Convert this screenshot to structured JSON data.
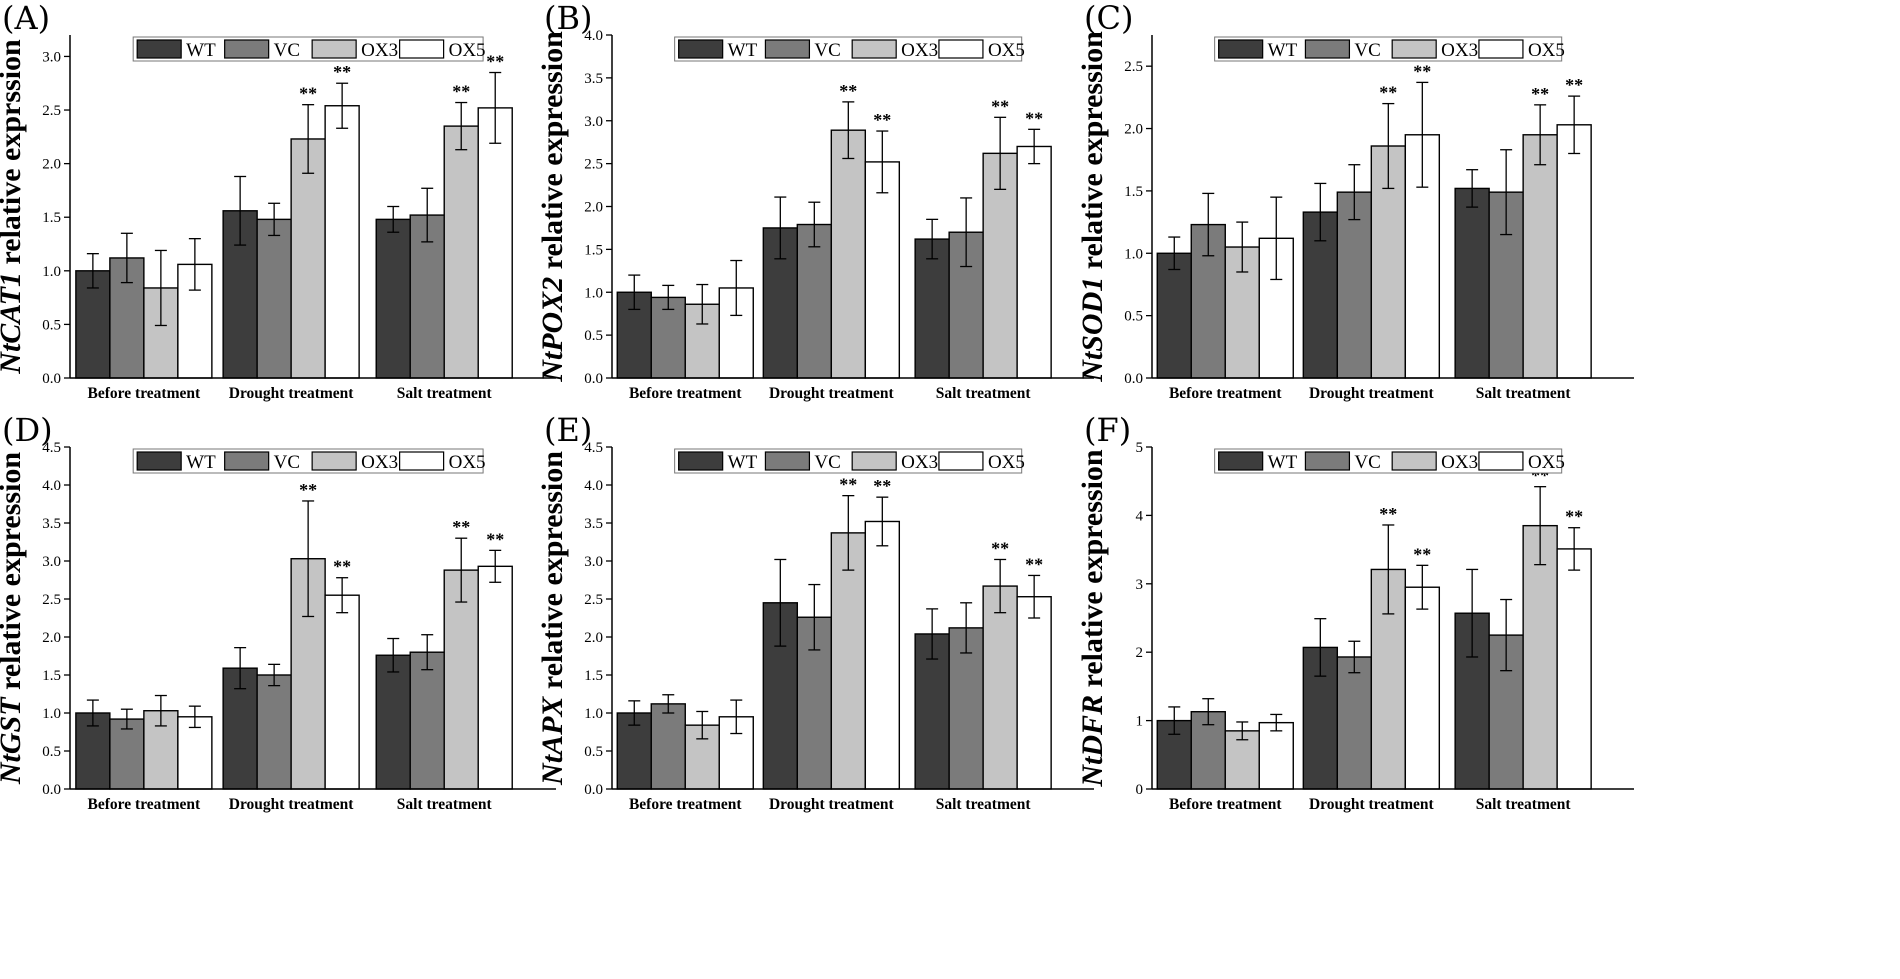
{
  "figure": {
    "colors": {
      "WT": "#3d3d3d",
      "VC": "#7b7b7b",
      "OX3": "#c4c4c4",
      "OX5": "#ffffff"
    },
    "legend": [
      "WT",
      "VC",
      "OX3",
      "OX5"
    ]
  },
  "chart_data": [
    {
      "type": "bar",
      "panel": "(A)",
      "gene": "NtCAT1",
      "ylabel_suffix": " relative exprssion",
      "categories": [
        "Before treatment",
        "Drought treatment",
        "Salt treatment"
      ],
      "ylim": [
        0,
        3.2
      ],
      "yticks": [
        "0.0",
        "0.5",
        "1.0",
        "1.5",
        "2.0",
        "2.5",
        "3.0"
      ],
      "ytick_values": [
        0,
        0.5,
        1,
        1.5,
        2,
        2.5,
        3
      ],
      "series": [
        {
          "name": "WT",
          "values": [
            1.0,
            1.56,
            1.48
          ],
          "errors": [
            0.16,
            0.32,
            0.12
          ],
          "sig": [
            "",
            "",
            ""
          ]
        },
        {
          "name": "VC",
          "values": [
            1.12,
            1.48,
            1.52
          ],
          "errors": [
            0.23,
            0.15,
            0.25
          ],
          "sig": [
            "",
            "",
            ""
          ]
        },
        {
          "name": "OX3",
          "values": [
            0.84,
            2.23,
            2.35
          ],
          "errors": [
            0.35,
            0.32,
            0.22
          ],
          "sig": [
            "",
            "**",
            "**"
          ]
        },
        {
          "name": "OX5",
          "values": [
            1.06,
            2.54,
            2.52
          ],
          "errors": [
            0.24,
            0.21,
            0.33
          ],
          "sig": [
            "",
            "**",
            "**"
          ]
        }
      ]
    },
    {
      "type": "bar",
      "panel": "(B)",
      "gene": "NtPOX2",
      "ylabel_suffix": " relative expression",
      "categories": [
        "Before treatment",
        "Drought treatment",
        "Salt treatment"
      ],
      "ylim": [
        0,
        4.0
      ],
      "yticks": [
        "0.0",
        "0.5",
        "1.0",
        "1.5",
        "2.0",
        "2.5",
        "3.0",
        "3.5",
        "4.0"
      ],
      "ytick_values": [
        0,
        0.5,
        1,
        1.5,
        2,
        2.5,
        3,
        3.5,
        4
      ],
      "series": [
        {
          "name": "WT",
          "values": [
            1.0,
            1.75,
            1.62
          ],
          "errors": [
            0.2,
            0.36,
            0.23
          ],
          "sig": [
            "",
            "",
            ""
          ]
        },
        {
          "name": "VC",
          "values": [
            0.94,
            1.79,
            1.7
          ],
          "errors": [
            0.14,
            0.26,
            0.4
          ],
          "sig": [
            "",
            "",
            ""
          ]
        },
        {
          "name": "OX3",
          "values": [
            0.86,
            2.89,
            2.62
          ],
          "errors": [
            0.23,
            0.33,
            0.42
          ],
          "sig": [
            "",
            "**",
            "**"
          ]
        },
        {
          "name": "OX5",
          "values": [
            1.05,
            2.52,
            2.7
          ],
          "errors": [
            0.32,
            0.36,
            0.2
          ],
          "sig": [
            "",
            "**",
            "**"
          ]
        }
      ]
    },
    {
      "type": "bar",
      "panel": "(C)",
      "gene": "NtSOD1",
      "ylabel_suffix": " relative expression",
      "categories": [
        "Before treatment",
        "Drought treatment",
        "Salt treatment"
      ],
      "ylim": [
        0,
        2.75
      ],
      "yticks": [
        "0.0",
        "0.5",
        "1.0",
        "1.5",
        "2.0",
        "2.5"
      ],
      "ytick_values": [
        0,
        0.5,
        1,
        1.5,
        2,
        2.5
      ],
      "series": [
        {
          "name": "WT",
          "values": [
            1.0,
            1.33,
            1.52
          ],
          "errors": [
            0.13,
            0.23,
            0.15
          ],
          "sig": [
            "",
            "",
            ""
          ]
        },
        {
          "name": "VC",
          "values": [
            1.23,
            1.49,
            1.49
          ],
          "errors": [
            0.25,
            0.22,
            0.34
          ],
          "sig": [
            "",
            "",
            ""
          ]
        },
        {
          "name": "OX3",
          "values": [
            1.05,
            1.86,
            1.95
          ],
          "errors": [
            0.2,
            0.34,
            0.24
          ],
          "sig": [
            "",
            "**",
            "**"
          ]
        },
        {
          "name": "OX5",
          "values": [
            1.12,
            1.95,
            2.03
          ],
          "errors": [
            0.33,
            0.42,
            0.23
          ],
          "sig": [
            "",
            "**",
            "**"
          ]
        }
      ]
    },
    {
      "type": "bar",
      "panel": "(D)",
      "gene": "NtGST",
      "ylabel_suffix": " relative expression",
      "categories": [
        "Before treatment",
        "Drought treatment",
        "Salt treatment"
      ],
      "ylim": [
        0,
        4.5
      ],
      "yticks": [
        "0.0",
        "0.5",
        "1.0",
        "1.5",
        "2.0",
        "2.5",
        "3.0",
        "3.5",
        "4.0",
        "4.5"
      ],
      "ytick_values": [
        0,
        0.5,
        1,
        1.5,
        2,
        2.5,
        3,
        3.5,
        4,
        4.5
      ],
      "series": [
        {
          "name": "WT",
          "values": [
            1.0,
            1.59,
            1.76
          ],
          "errors": [
            0.17,
            0.27,
            0.22
          ],
          "sig": [
            "",
            "",
            ""
          ]
        },
        {
          "name": "VC",
          "values": [
            0.92,
            1.5,
            1.8
          ],
          "errors": [
            0.13,
            0.14,
            0.23
          ],
          "sig": [
            "",
            "",
            ""
          ]
        },
        {
          "name": "OX3",
          "values": [
            1.03,
            3.03,
            2.88
          ],
          "errors": [
            0.2,
            0.76,
            0.42
          ],
          "sig": [
            "",
            "**",
            "**"
          ]
        },
        {
          "name": "OX5",
          "values": [
            0.95,
            2.55,
            2.93
          ],
          "errors": [
            0.14,
            0.23,
            0.21
          ],
          "sig": [
            "",
            "**",
            "**"
          ]
        }
      ]
    },
    {
      "type": "bar",
      "panel": "(E)",
      "gene": "NtAPX",
      "ylabel_suffix": " relative expression",
      "categories": [
        "Before treatment",
        "Drought treatment",
        "Salt treatment"
      ],
      "ylim": [
        0,
        4.5
      ],
      "yticks": [
        "0.0",
        "0.5",
        "1.0",
        "1.5",
        "2.0",
        "2.5",
        "3.0",
        "3.5",
        "4.0",
        "4.5"
      ],
      "ytick_values": [
        0,
        0.5,
        1,
        1.5,
        2,
        2.5,
        3,
        3.5,
        4,
        4.5
      ],
      "series": [
        {
          "name": "WT",
          "values": [
            1.0,
            2.45,
            2.04
          ],
          "errors": [
            0.16,
            0.57,
            0.33
          ],
          "sig": [
            "",
            "",
            ""
          ]
        },
        {
          "name": "VC",
          "values": [
            1.12,
            2.26,
            2.12
          ],
          "errors": [
            0.12,
            0.43,
            0.33
          ],
          "sig": [
            "",
            "",
            ""
          ]
        },
        {
          "name": "OX3",
          "values": [
            0.84,
            3.37,
            2.67
          ],
          "errors": [
            0.18,
            0.49,
            0.35
          ],
          "sig": [
            "",
            "**",
            "**"
          ]
        },
        {
          "name": "OX5",
          "values": [
            0.95,
            3.52,
            2.53
          ],
          "errors": [
            0.22,
            0.32,
            0.28
          ],
          "sig": [
            "",
            "**",
            "**"
          ]
        }
      ]
    },
    {
      "type": "bar",
      "panel": "(F)",
      "gene": "NtDFR",
      "ylabel_suffix": " relative expression",
      "categories": [
        "Before treatment",
        "Drought treatment",
        "Salt treatment"
      ],
      "ylim": [
        0,
        5
      ],
      "yticks": [
        "0",
        "1",
        "2",
        "3",
        "4",
        "5"
      ],
      "ytick_values": [
        0,
        1,
        2,
        3,
        4,
        5
      ],
      "series": [
        {
          "name": "WT",
          "values": [
            1.0,
            2.07,
            2.57
          ],
          "errors": [
            0.2,
            0.42,
            0.64
          ],
          "sig": [
            "",
            "",
            ""
          ]
        },
        {
          "name": "VC",
          "values": [
            1.13,
            1.93,
            2.25
          ],
          "errors": [
            0.19,
            0.23,
            0.52
          ],
          "sig": [
            "",
            "",
            ""
          ]
        },
        {
          "name": "OX3",
          "values": [
            0.85,
            3.21,
            3.85
          ],
          "errors": [
            0.13,
            0.65,
            0.57
          ],
          "sig": [
            "",
            "**",
            "**"
          ]
        },
        {
          "name": "OX5",
          "values": [
            0.97,
            2.95,
            3.51
          ],
          "errors": [
            0.12,
            0.32,
            0.31
          ],
          "sig": [
            "",
            "**",
            "**"
          ]
        }
      ]
    }
  ]
}
